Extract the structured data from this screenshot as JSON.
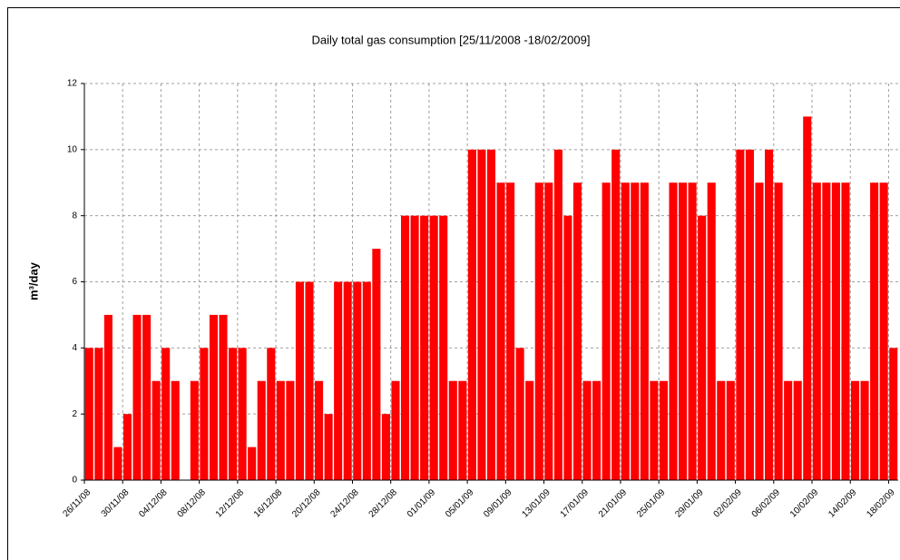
{
  "chart_data": {
    "type": "bar",
    "title": "Daily total gas consumption [25/11/2008 -18/02/2009]",
    "y_label": "m³/day",
    "categories": [
      "26/11/08",
      null,
      null,
      null,
      "30/11/08",
      null,
      null,
      null,
      "04/12/08",
      null,
      null,
      null,
      "08/12/08",
      null,
      null,
      null,
      "12/12/08",
      null,
      null,
      null,
      "16/12/08",
      null,
      null,
      null,
      "20/12/08",
      null,
      null,
      null,
      "24/12/08",
      null,
      null,
      null,
      "28/12/08",
      null,
      null,
      null,
      "01/01/09",
      null,
      null,
      null,
      "05/01/09",
      null,
      null,
      null,
      "09/01/09",
      null,
      null,
      null,
      "13/01/09",
      null,
      null,
      null,
      "17/01/09",
      null,
      null,
      null,
      "21/01/09",
      null,
      null,
      null,
      "25/01/09",
      null,
      null,
      null,
      "29/01/09",
      null,
      null,
      null,
      "02/02/09",
      null,
      null,
      null,
      "06/02/09",
      null,
      null,
      null,
      "10/02/09",
      null,
      null,
      null,
      "14/02/09",
      null,
      null,
      null,
      "18/02/09"
    ],
    "values": [
      4,
      4,
      5,
      1,
      2,
      5,
      5,
      3,
      4,
      3,
      0,
      3,
      4,
      5,
      5,
      4,
      4,
      1,
      3,
      4,
      3,
      3,
      6,
      6,
      3,
      2,
      6,
      6,
      6,
      6,
      7,
      2,
      3,
      8,
      8,
      8,
      8,
      8,
      3,
      3,
      10,
      10,
      10,
      9,
      9,
      4,
      3,
      9,
      9,
      10,
      8,
      9,
      3,
      3,
      9,
      10,
      9,
      9,
      9,
      3,
      3,
      9,
      9,
      9,
      8,
      9,
      3,
      3,
      10,
      10,
      9,
      10,
      9,
      3,
      3,
      11,
      9,
      9,
      9,
      9,
      3,
      3,
      9,
      9,
      4
    ],
    "color": "#ff0000",
    "ylim": [
      0,
      12
    ],
    "yticks": [
      0,
      2,
      4,
      6,
      8,
      10,
      12
    ],
    "grid": true
  }
}
